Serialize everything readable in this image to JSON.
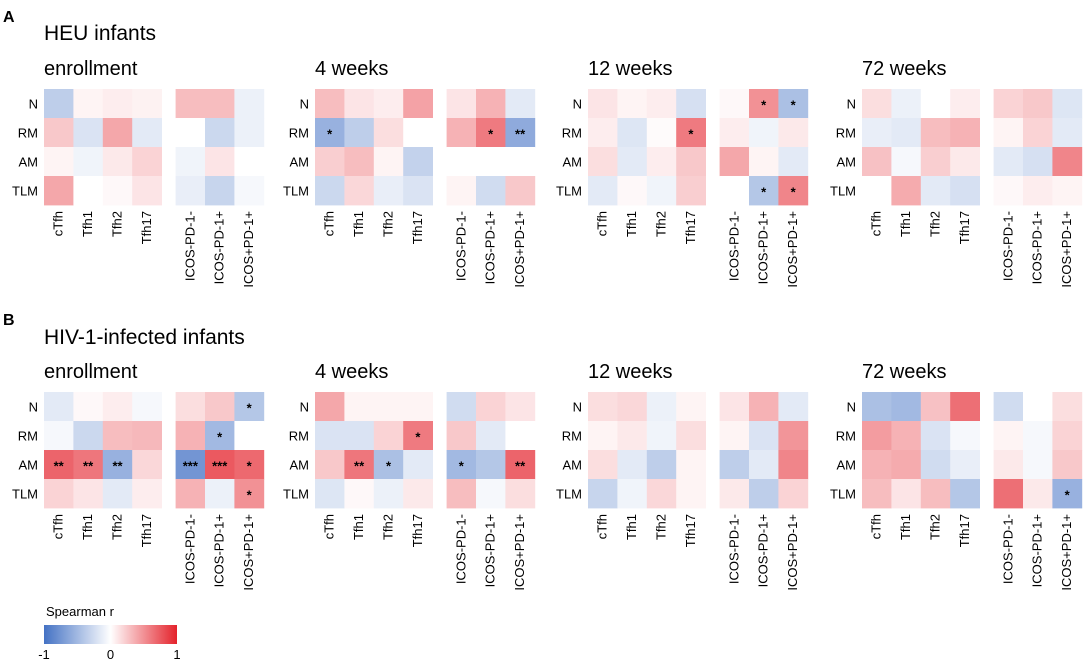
{
  "chart_data": {
    "type": "heatmap",
    "row_labels": [
      "N",
      "RM",
      "AM",
      "TLM"
    ],
    "col_labels": [
      "cTfh",
      "Tfh1",
      "Tfh2",
      "Tfh17",
      "ICOS-PD-1-",
      "ICOS-PD-1+",
      "ICOS+PD-1+"
    ],
    "value_range": [
      -1,
      1
    ],
    "legend": {
      "title": "Spearman r",
      "ticks": [
        "-1",
        "0",
        "1"
      ],
      "colors": [
        "#4472c4",
        "#ffffff",
        "#e4222b"
      ]
    },
    "panels": [
      {
        "letter": "A",
        "title": "HEU infants",
        "timepoints": [
          {
            "label": "enrollment",
            "values": [
              [
                -0.35,
                0.05,
                0.08,
                0.06,
                0.3,
                0.3,
                -0.1
              ],
              [
                0.25,
                -0.2,
                0.4,
                -0.15,
                0.0,
                -0.28,
                -0.1
              ],
              [
                0.05,
                -0.08,
                0.1,
                0.2,
                -0.08,
                0.12,
                0.0
              ],
              [
                0.4,
                0.0,
                0.03,
                0.12,
                -0.12,
                -0.3,
                -0.05
              ]
            ],
            "stars": [
              [
                "",
                "",
                "",
                "",
                "",
                "",
                ""
              ],
              [
                "",
                "",
                "",
                "",
                "",
                "",
                ""
              ],
              [
                "",
                "",
                "",
                "",
                "",
                "",
                ""
              ],
              [
                "",
                "",
                "",
                "",
                "",
                "",
                ""
              ]
            ]
          },
          {
            "label": "4 weeks",
            "values": [
              [
                0.3,
                0.12,
                0.08,
                0.42,
                0.12,
                0.35,
                -0.15
              ],
              [
                -0.55,
                -0.35,
                0.15,
                0.0,
                0.35,
                0.6,
                -0.6
              ],
              [
                0.22,
                0.3,
                0.05,
                -0.32,
                0.0,
                0.0,
                0.0
              ],
              [
                -0.28,
                0.18,
                -0.12,
                -0.2,
                0.05,
                -0.25,
                0.25
              ]
            ],
            "stars": [
              [
                "",
                "",
                "",
                "",
                "",
                "",
                ""
              ],
              [
                "*",
                "",
                "",
                "",
                "",
                "*",
                "**"
              ],
              [
                "",
                "",
                "",
                "",
                "",
                "",
                ""
              ],
              [
                "",
                "",
                "",
                "",
                "",
                "",
                ""
              ]
            ]
          },
          {
            "label": "12 weeks",
            "values": [
              [
                0.12,
                0.05,
                0.08,
                -0.22,
                0.03,
                0.5,
                -0.45
              ],
              [
                0.08,
                -0.18,
                0.02,
                0.6,
                0.08,
                -0.08,
                0.1
              ],
              [
                0.15,
                -0.15,
                0.08,
                0.25,
                0.4,
                0.05,
                -0.15
              ],
              [
                -0.15,
                0.03,
                -0.08,
                0.22,
                0.0,
                -0.4,
                0.55
              ]
            ],
            "stars": [
              [
                "",
                "",
                "",
                "",
                "",
                "*",
                "*"
              ],
              [
                "",
                "",
                "",
                "*",
                "",
                "",
                ""
              ],
              [
                "",
                "",
                "",
                "",
                "",
                "",
                ""
              ],
              [
                "",
                "",
                "",
                "",
                "",
                "*",
                "*"
              ]
            ]
          },
          {
            "label": "72 weeks",
            "values": [
              [
                0.15,
                -0.1,
                0.0,
                0.08,
                0.2,
                0.25,
                -0.18
              ],
              [
                -0.12,
                -0.15,
                0.3,
                0.35,
                0.05,
                0.2,
                -0.15
              ],
              [
                0.28,
                -0.05,
                0.22,
                0.1,
                -0.15,
                -0.22,
                0.55
              ],
              [
                0.0,
                0.38,
                -0.15,
                -0.22,
                0.03,
                0.08,
                0.05
              ]
            ],
            "stars": [
              [
                "",
                "",
                "",
                "",
                "",
                "",
                ""
              ],
              [
                "",
                "",
                "",
                "",
                "",
                "",
                ""
              ],
              [
                "",
                "",
                "",
                "",
                "",
                "",
                ""
              ],
              [
                "",
                "",
                "",
                "",
                "",
                "",
                ""
              ]
            ]
          }
        ]
      },
      {
        "letter": "B",
        "title": "HIV-1-infected infants",
        "timepoints": [
          {
            "label": "enrollment",
            "values": [
              [
                -0.15,
                0.03,
                0.08,
                -0.05,
                0.15,
                0.25,
                -0.4
              ],
              [
                -0.05,
                -0.28,
                0.3,
                0.32,
                0.35,
                -0.5,
                0.0
              ],
              [
                0.7,
                0.62,
                -0.55,
                0.18,
                -0.75,
                0.75,
                0.68
              ],
              [
                0.2,
                0.12,
                -0.15,
                0.08,
                0.35,
                -0.1,
                0.5
              ]
            ],
            "stars": [
              [
                "",
                "",
                "",
                "",
                "",
                "",
                "*"
              ],
              [
                "",
                "",
                "",
                "",
                "",
                "*",
                ""
              ],
              [
                "**",
                "**",
                "**",
                "",
                "***",
                "***",
                "*"
              ],
              [
                "",
                "",
                "",
                "",
                "",
                "",
                "*"
              ]
            ]
          },
          {
            "label": "4 weeks",
            "values": [
              [
                0.4,
                0.05,
                0.05,
                0.05,
                -0.25,
                0.2,
                0.12
              ],
              [
                -0.2,
                -0.2,
                0.2,
                0.6,
                0.25,
                -0.15,
                0.0
              ],
              [
                0.25,
                0.62,
                -0.45,
                -0.15,
                -0.5,
                -0.4,
                0.7
              ],
              [
                -0.18,
                0.03,
                -0.1,
                0.1,
                0.3,
                -0.05,
                0.15
              ]
            ],
            "stars": [
              [
                "",
                "",
                "",
                "",
                "",
                "",
                ""
              ],
              [
                "",
                "",
                "",
                "*",
                "",
                "",
                ""
              ],
              [
                "",
                "**",
                "*",
                "",
                "*",
                "",
                "**"
              ],
              [
                "",
                "",
                "",
                "",
                "",
                "",
                ""
              ]
            ]
          },
          {
            "label": "12 weeks",
            "values": [
              [
                0.15,
                0.18,
                -0.1,
                0.05,
                0.12,
                0.35,
                -0.15
              ],
              [
                0.05,
                0.1,
                -0.08,
                0.15,
                0.05,
                -0.2,
                0.48
              ],
              [
                0.15,
                -0.15,
                -0.35,
                0.05,
                -0.35,
                -0.15,
                0.55
              ],
              [
                -0.3,
                -0.08,
                0.18,
                0.05,
                0.1,
                -0.35,
                0.2
              ]
            ],
            "stars": [
              [
                "",
                "",
                "",
                "",
                "",
                "",
                ""
              ],
              [
                "",
                "",
                "",
                "",
                "",
                "",
                ""
              ],
              [
                "",
                "",
                "",
                "",
                "",
                "",
                ""
              ],
              [
                "",
                "",
                "",
                "",
                "",
                "",
                ""
              ]
            ]
          },
          {
            "label": "72 weeks",
            "values": [
              [
                -0.45,
                -0.5,
                0.28,
                0.65,
                -0.25,
                0.0,
                0.15
              ],
              [
                0.45,
                0.35,
                -0.2,
                -0.05,
                0.05,
                -0.05,
                0.2
              ],
              [
                0.35,
                0.38,
                -0.25,
                -0.12,
                0.1,
                -0.05,
                0.25
              ],
              [
                0.3,
                0.12,
                0.3,
                -0.4,
                0.65,
                0.1,
                -0.55
              ]
            ],
            "stars": [
              [
                "",
                "",
                "",
                "",
                "",
                "",
                ""
              ],
              [
                "",
                "",
                "",
                "",
                "",
                "",
                ""
              ],
              [
                "",
                "",
                "",
                "",
                "",
                "",
                ""
              ],
              [
                "",
                "",
                "",
                "",
                "",
                "",
                "*"
              ]
            ]
          }
        ]
      }
    ]
  }
}
